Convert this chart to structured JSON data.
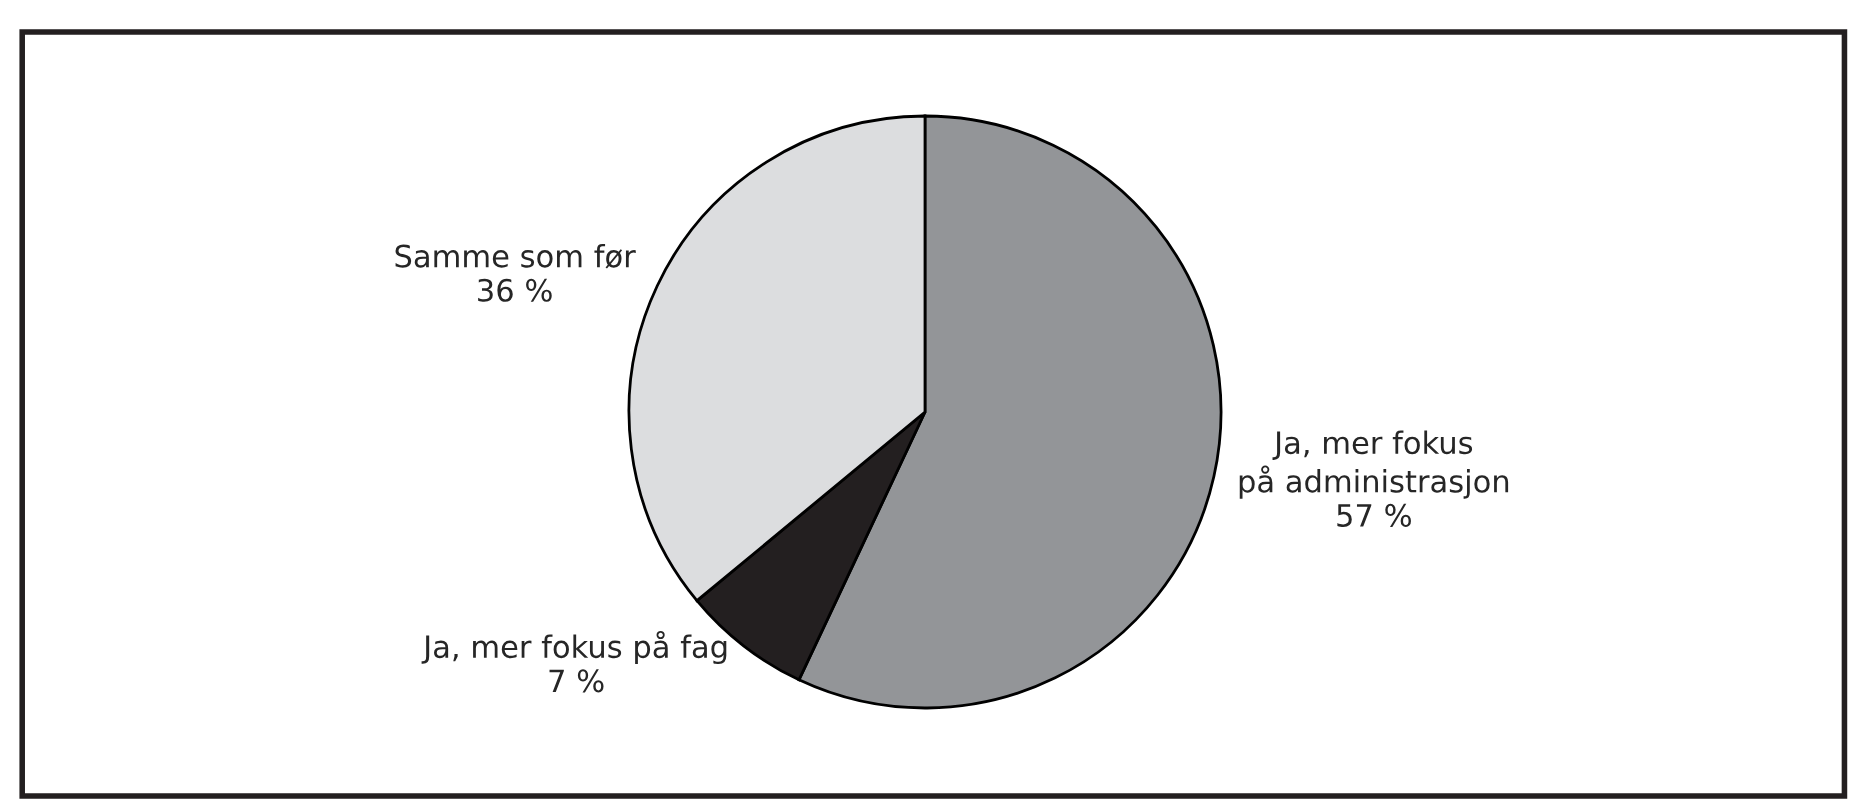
{
  "chart_data": {
    "type": "pie",
    "categories": [
      "Ja, mer fokus\npå administrasjon",
      "Ja, mer fokus på fag",
      "Samme som før"
    ],
    "values": [
      57,
      7,
      36
    ],
    "value_labels": [
      "57 %",
      "7 %",
      "36 %"
    ],
    "colors": [
      "#939598",
      "#231f20",
      "#dcdddf"
    ],
    "legend": false
  }
}
